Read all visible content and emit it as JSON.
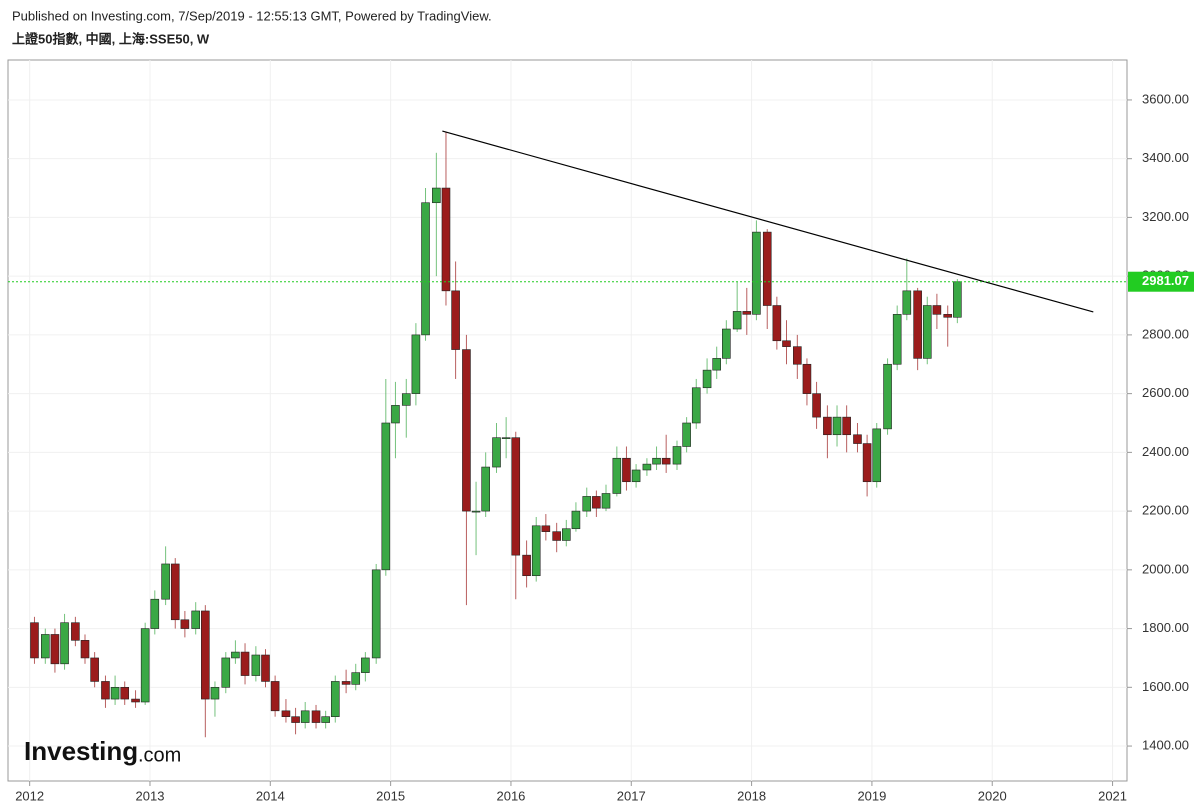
{
  "header": {
    "published": "Published on Investing.com, 7/Sep/2019 - 12:55:13 GMT, Powered by TradingView.",
    "symbol": "上證50指數, 中國, 上海:SSE50, W"
  },
  "logo": {
    "brand": "Investing",
    "suffix": ".com"
  },
  "chart_data": {
    "type": "candlestick",
    "up_color": "#3aa845",
    "down_color": "#9b1c1c",
    "grid": true,
    "xlim": [
      2011.82,
      2021.12
    ],
    "xticks": [
      2012,
      2013,
      2014,
      2015,
      2016,
      2017,
      2018,
      2019,
      2020,
      2021
    ],
    "ylim": [
      1281,
      3736
    ],
    "yticks": [
      {
        "value": 1400,
        "label": "1400.00"
      },
      {
        "value": 1600,
        "label": "1600.00"
      },
      {
        "value": 1800,
        "label": "1800.00"
      },
      {
        "value": 2000,
        "label": "2000.00"
      },
      {
        "value": 2200,
        "label": "2200.00"
      },
      {
        "value": 2400,
        "label": "2400.00"
      },
      {
        "value": 2600,
        "label": "2600.00"
      },
      {
        "value": 2800,
        "label": "2800.00"
      },
      {
        "value": 3000,
        "label": "3000.00"
      },
      {
        "value": 3200,
        "label": "3200.00"
      },
      {
        "value": 3400,
        "label": "3400.00"
      },
      {
        "value": 3600,
        "label": "3600.00"
      }
    ],
    "last_price": 2981.07,
    "last_price_color": "#22cc22",
    "trendline": {
      "x": [
        2015.43,
        2020.84
      ],
      "y": [
        3494,
        2878
      ],
      "color": "#000000"
    },
    "x": [
      2012.04,
      2012.13,
      2012.21,
      2012.29,
      2012.38,
      2012.46,
      2012.54,
      2012.63,
      2012.71,
      2012.79,
      2012.88,
      2012.96,
      2013.04,
      2013.13,
      2013.21,
      2013.29,
      2013.38,
      2013.46,
      2013.54,
      2013.63,
      2013.71,
      2013.79,
      2013.88,
      2013.96,
      2014.04,
      2014.13,
      2014.21,
      2014.29,
      2014.38,
      2014.46,
      2014.54,
      2014.63,
      2014.71,
      2014.79,
      2014.88,
      2014.96,
      2015.04,
      2015.13,
      2015.21,
      2015.29,
      2015.38,
      2015.46,
      2015.54,
      2015.63,
      2015.71,
      2015.79,
      2015.88,
      2015.96,
      2016.04,
      2016.13,
      2016.21,
      2016.29,
      2016.38,
      2016.46,
      2016.54,
      2016.63,
      2016.71,
      2016.79,
      2016.88,
      2016.96,
      2017.04,
      2017.13,
      2017.21,
      2017.29,
      2017.38,
      2017.46,
      2017.54,
      2017.63,
      2017.71,
      2017.79,
      2017.88,
      2017.96,
      2018.04,
      2018.13,
      2018.21,
      2018.29,
      2018.38,
      2018.46,
      2018.54,
      2018.63,
      2018.71,
      2018.79,
      2018.88,
      2018.96,
      2019.04,
      2019.13,
      2019.21,
      2019.29,
      2019.38,
      2019.46,
      2019.54,
      2019.63,
      2019.71
    ],
    "open": [
      1820,
      1700,
      1780,
      1680,
      1820,
      1760,
      1700,
      1620,
      1560,
      1600,
      1560,
      1550,
      1800,
      1900,
      2020,
      1830,
      1800,
      1860,
      1560,
      1600,
      1700,
      1720,
      1640,
      1710,
      1620,
      1520,
      1500,
      1480,
      1520,
      1480,
      1500,
      1620,
      1610,
      1650,
      1700,
      2000,
      2500,
      2560,
      2600,
      2800,
      3250,
      3300,
      2950,
      2750,
      2200,
      2200,
      2350,
      2450,
      2450,
      2050,
      1980,
      2150,
      2130,
      2100,
      2140,
      2200,
      2250,
      2210,
      2260,
      2380,
      2300,
      2340,
      2360,
      2380,
      2360,
      2420,
      2500,
      2620,
      2680,
      2720,
      2820,
      2880,
      2870,
      3150,
      2900,
      2780,
      2760,
      2700,
      2600,
      2520,
      2460,
      2520,
      2460,
      2430,
      2300,
      2480,
      2700,
      2870,
      2950,
      2720,
      2900,
      2870,
      2860
    ],
    "high": [
      1840,
      1800,
      1800,
      1850,
      1840,
      1780,
      1720,
      1640,
      1640,
      1620,
      1590,
      1820,
      1930,
      2080,
      2040,
      1860,
      1890,
      1880,
      1620,
      1720,
      1760,
      1750,
      1740,
      1730,
      1640,
      1560,
      1530,
      1550,
      1540,
      1520,
      1640,
      1660,
      1680,
      1720,
      2020,
      2650,
      2640,
      2650,
      2840,
      3300,
      3420,
      3490,
      3050,
      2800,
      2300,
      2400,
      2500,
      2520,
      2470,
      2100,
      2180,
      2190,
      2160,
      2170,
      2230,
      2280,
      2270,
      2290,
      2420,
      2420,
      2360,
      2380,
      2420,
      2460,
      2440,
      2520,
      2650,
      2720,
      2760,
      2850,
      2980,
      2960,
      3190,
      3160,
      2930,
      2850,
      2800,
      2720,
      2640,
      2560,
      2560,
      2560,
      2500,
      2460,
      2500,
      2720,
      2900,
      3060,
      2960,
      2930,
      2940,
      2900,
      2990
    ],
    "low": [
      1680,
      1680,
      1650,
      1660,
      1740,
      1680,
      1600,
      1530,
      1540,
      1540,
      1530,
      1540,
      1780,
      1880,
      1800,
      1770,
      1780,
      1430,
      1500,
      1580,
      1680,
      1610,
      1620,
      1600,
      1500,
      1480,
      1440,
      1460,
      1460,
      1460,
      1480,
      1580,
      1590,
      1620,
      1680,
      1980,
      2380,
      2450,
      2560,
      2780,
      3000,
      2900,
      2650,
      1880,
      2050,
      2180,
      2330,
      2380,
      1900,
      1940,
      1960,
      2100,
      2060,
      2080,
      2130,
      2180,
      2180,
      2200,
      2250,
      2270,
      2280,
      2320,
      2340,
      2330,
      2340,
      2400,
      2480,
      2600,
      2650,
      2700,
      2810,
      2800,
      2850,
      2820,
      2750,
      2700,
      2650,
      2560,
      2480,
      2380,
      2420,
      2400,
      2400,
      2250,
      2280,
      2460,
      2680,
      2850,
      2680,
      2700,
      2820,
      2760,
      2840
    ],
    "close": [
      1700,
      1780,
      1680,
      1820,
      1760,
      1700,
      1620,
      1560,
      1600,
      1560,
      1550,
      1800,
      1900,
      2020,
      1830,
      1800,
      1860,
      1560,
      1600,
      1700,
      1720,
      1640,
      1710,
      1620,
      1520,
      1500,
      1480,
      1520,
      1480,
      1500,
      1620,
      1610,
      1650,
      1700,
      2000,
      2500,
      2560,
      2600,
      2800,
      3250,
      3300,
      2950,
      2750,
      2200,
      2200,
      2350,
      2450,
      2450,
      2050,
      1980,
      2150,
      2130,
      2100,
      2140,
      2200,
      2250,
      2210,
      2260,
      2380,
      2300,
      2340,
      2360,
      2380,
      2360,
      2420,
      2500,
      2620,
      2680,
      2720,
      2820,
      2880,
      2870,
      3150,
      2900,
      2780,
      2760,
      2700,
      2600,
      2520,
      2460,
      2520,
      2460,
      2430,
      2300,
      2480,
      2700,
      2870,
      2950,
      2720,
      2900,
      2870,
      2860,
      2981
    ]
  }
}
